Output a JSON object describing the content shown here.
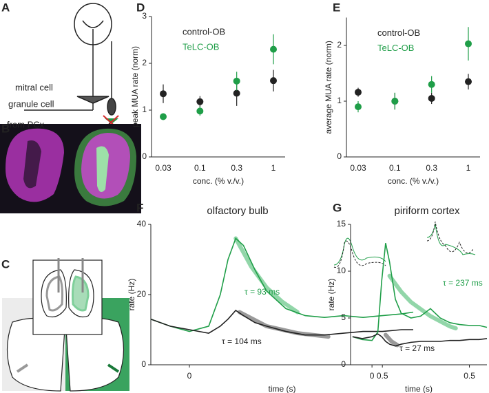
{
  "panel_labels": [
    "A",
    "B",
    "C",
    "D",
    "E",
    "F",
    "G"
  ],
  "diagram_labels": [
    "mitral cell",
    "granule cell",
    "from PCx"
  ],
  "chart_data": [
    {
      "type": "scatter",
      "ylabel": "peak MUA rate (norm)",
      "xlabel": "conc. (% v./v.)",
      "categories": [
        "0.03",
        "0.1",
        "0.3",
        "1"
      ],
      "ylim": [
        0,
        3
      ],
      "yticks": [
        0,
        1,
        2,
        3
      ],
      "series": [
        {
          "name": "control-OB",
          "color": "#222222",
          "values": [
            1.35,
            1.18,
            1.36,
            1.63
          ],
          "errors": [
            0.2,
            0.12,
            0.27,
            0.23
          ]
        },
        {
          "name": "TeLC-OB",
          "color": "#1f9e48",
          "values": [
            0.86,
            0.98,
            1.62,
            2.3
          ],
          "errors": [
            0.07,
            0.1,
            0.2,
            0.32
          ]
        }
      ]
    },
    {
      "type": "scatter",
      "ylabel": "average MUA rate (norm)",
      "xlabel": "conc. (% v./v.)",
      "categories": [
        "0.03",
        "0.1",
        "0.3",
        "1"
      ],
      "ylim": [
        0,
        2.5
      ],
      "yticks": [
        0,
        1,
        2
      ],
      "series": [
        {
          "name": "control-OB",
          "color": "#222222",
          "values": [
            1.16,
            1.0,
            1.05,
            1.35
          ],
          "errors": [
            0.08,
            0.15,
            0.1,
            0.14
          ]
        },
        {
          "name": "TeLC-OB",
          "color": "#1f9e48",
          "values": [
            0.9,
            1.0,
            1.3,
            2.03
          ],
          "errors": [
            0.1,
            0.15,
            0.15,
            0.3
          ]
        }
      ]
    },
    {
      "type": "line",
      "title": "olfactory bulb",
      "ylabel": "rate (Hz)",
      "xlabel": "time (s)",
      "xlim": [
        -0.1,
        0.58
      ],
      "xticks": [
        0,
        0.5
      ],
      "ylim": [
        0,
        40
      ],
      "yticks": [
        0,
        20,
        40
      ],
      "x": [
        -0.1,
        -0.05,
        0,
        0.05,
        0.08,
        0.1,
        0.12,
        0.14,
        0.17,
        0.2,
        0.25,
        0.3,
        0.35,
        0.4,
        0.45,
        0.5,
        0.55,
        0.58
      ],
      "series": [
        {
          "color": "#1f9e48",
          "values": [
            13,
            11,
            9.5,
            11,
            20,
            30,
            36,
            34,
            27,
            21,
            16,
            14,
            13.5,
            14,
            13.5,
            14,
            14.5,
            15
          ]
        },
        {
          "color": "#222222",
          "values": [
            13,
            11,
            10,
            9,
            11,
            13,
            15.5,
            14,
            12,
            11,
            9.5,
            8.5,
            8.5,
            9,
            9.5,
            9.5,
            10,
            10
          ]
        }
      ],
      "fits": [
        {
          "color": "#7fcf9a",
          "x": [
            0.12,
            0.16,
            0.2,
            0.24,
            0.28
          ],
          "values": [
            36,
            28,
            22,
            18,
            15
          ]
        },
        {
          "color": "#888888",
          "x": [
            0.13,
            0.2,
            0.28,
            0.36
          ],
          "values": [
            15,
            11,
            9,
            8
          ]
        }
      ],
      "annotations": [
        {
          "text": "τ = 93 ms",
          "color": "#1f9e48"
        },
        {
          "text": "τ = 104 ms",
          "color": "#222222"
        }
      ]
    },
    {
      "type": "line",
      "title": "piriform cortex",
      "ylabel": "rate (Hz)",
      "xlabel": "time (s)",
      "xlim": [
        -0.11,
        0.59
      ],
      "xticks": [
        0,
        0.5
      ],
      "ylim": [
        0,
        15
      ],
      "yticks": [
        0,
        5,
        10,
        15
      ],
      "x": [
        -0.1,
        -0.05,
        0,
        0.03,
        0.05,
        0.07,
        0.09,
        0.12,
        0.15,
        0.2,
        0.25,
        0.3,
        0.35,
        0.4,
        0.45,
        0.5,
        0.55,
        0.59
      ],
      "series": [
        {
          "color": "#1f9e48",
          "values": [
            3,
            2.7,
            2.6,
            3.5,
            9,
            13,
            11,
            7,
            5.5,
            5,
            5.2,
            6,
            5,
            4.5,
            4.3,
            4.2,
            4.2,
            4
          ]
        },
        {
          "color": "#222222",
          "values": [
            3,
            2.8,
            3,
            3.3,
            3,
            2.5,
            2.2,
            2,
            2.2,
            2.4,
            2.5,
            2.5,
            2.5,
            2.6,
            2.6,
            2.7,
            2.7,
            2.8
          ]
        }
      ],
      "fits": [
        {
          "color": "#7fcf9a",
          "x": [
            0.09,
            0.15,
            0.2,
            0.3,
            0.4,
            0.43
          ],
          "values": [
            9.5,
            7.8,
            6.7,
            5.2,
            4.1,
            3.9
          ]
        },
        {
          "color": "#888888",
          "x": [
            0.07,
            0.1,
            0.13
          ],
          "values": [
            3.2,
            2.5,
            2.1
          ]
        }
      ],
      "annotations": [
        {
          "text": "τ = 237 ms",
          "color": "#1f9e48"
        },
        {
          "text": "τ = 27 ms",
          "color": "#222222"
        }
      ]
    }
  ]
}
